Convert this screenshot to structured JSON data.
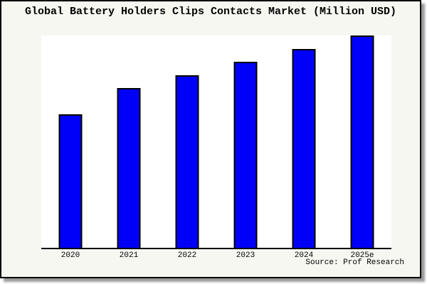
{
  "title": "Global Battery Holders Clips Contacts Market (Million USD)",
  "source": "Source: Prof Research",
  "colors": {
    "figure_bg": "#f7f7f2",
    "plot_bg": "#ffffff",
    "bar_fill": "#0000fa",
    "bar_edge": "#000000",
    "axis_line": "#000000",
    "frame_border": "#000000",
    "shadow": "#999999",
    "text": "#000000"
  },
  "chart_data": {
    "type": "bar",
    "title": "Global Battery Holders Clips Contacts Market (Million USD)",
    "categories": [
      "2020",
      "2021",
      "2022",
      "2023",
      "2024",
      "2025e"
    ],
    "values": [
      62.8,
      75.1,
      81.4,
      87.7,
      93.7,
      100
    ],
    "value_note": "Y-axis has no tick labels in the image; values are relative bar heights estimated from pixels, indexed so 2025e = 100.",
    "xlabel": "",
    "ylabel": "",
    "ylim": [
      0,
      100
    ],
    "grid": false,
    "legend": false,
    "annotations": [
      "Source: Prof Research"
    ]
  }
}
